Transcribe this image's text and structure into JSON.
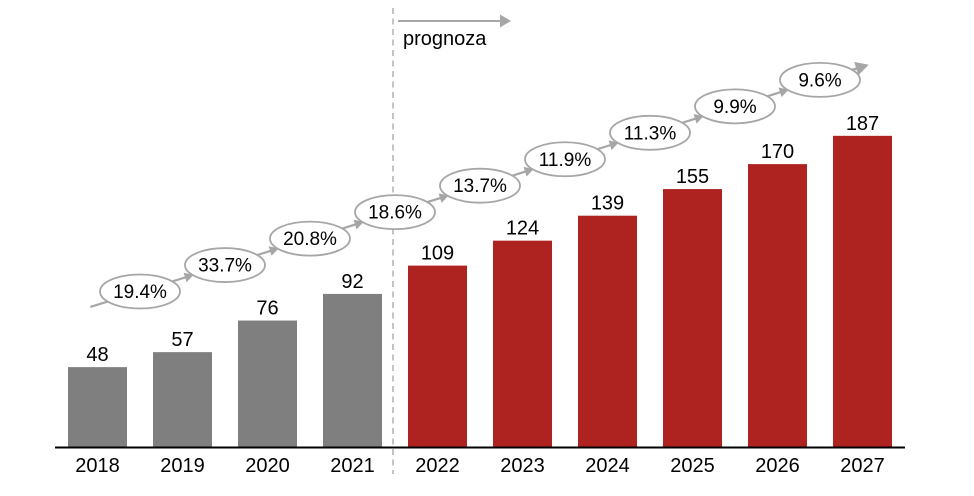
{
  "labels": {
    "forecast_label": "prognoza"
  },
  "colors": {
    "historical_bar": "#7F7F7F",
    "forecast_bar": "#AE2220",
    "trend_gray": "#A6A6A6",
    "divider_gray": "#ABABAB",
    "axis_black": "#000000",
    "text_black": "#000000",
    "oval_fill": "#FFFFFF"
  },
  "chart_data": {
    "type": "bar",
    "title": "",
    "xlabel": "",
    "ylabel": "",
    "grid": false,
    "legend": false,
    "ylim": [
      0,
      200
    ],
    "categories": [
      "2018",
      "2019",
      "2020",
      "2021",
      "2022",
      "2023",
      "2024",
      "2025",
      "2026",
      "2027"
    ],
    "values": [
      48,
      57,
      76,
      92,
      109,
      124,
      139,
      155,
      170,
      187
    ],
    "forecast_start_index": 4,
    "series": [
      {
        "name": "historical",
        "categories": [
          "2018",
          "2019",
          "2020",
          "2021"
        ],
        "values": [
          48,
          57,
          76,
          92
        ]
      },
      {
        "name": "forecast",
        "categories": [
          "2022",
          "2023",
          "2024",
          "2025",
          "2026",
          "2027"
        ],
        "values": [
          109,
          124,
          139,
          155,
          170,
          187
        ]
      }
    ],
    "growth_labels": [
      "19.4%",
      "33.7%",
      "20.8%",
      "18.6%",
      "13.7%",
      "11.9%",
      "11.3%",
      "9.9%",
      "9.6%"
    ],
    "annotations": {
      "forecast_divider_between": [
        "2021",
        "2022"
      ],
      "forecast_label": "prognoza"
    }
  }
}
